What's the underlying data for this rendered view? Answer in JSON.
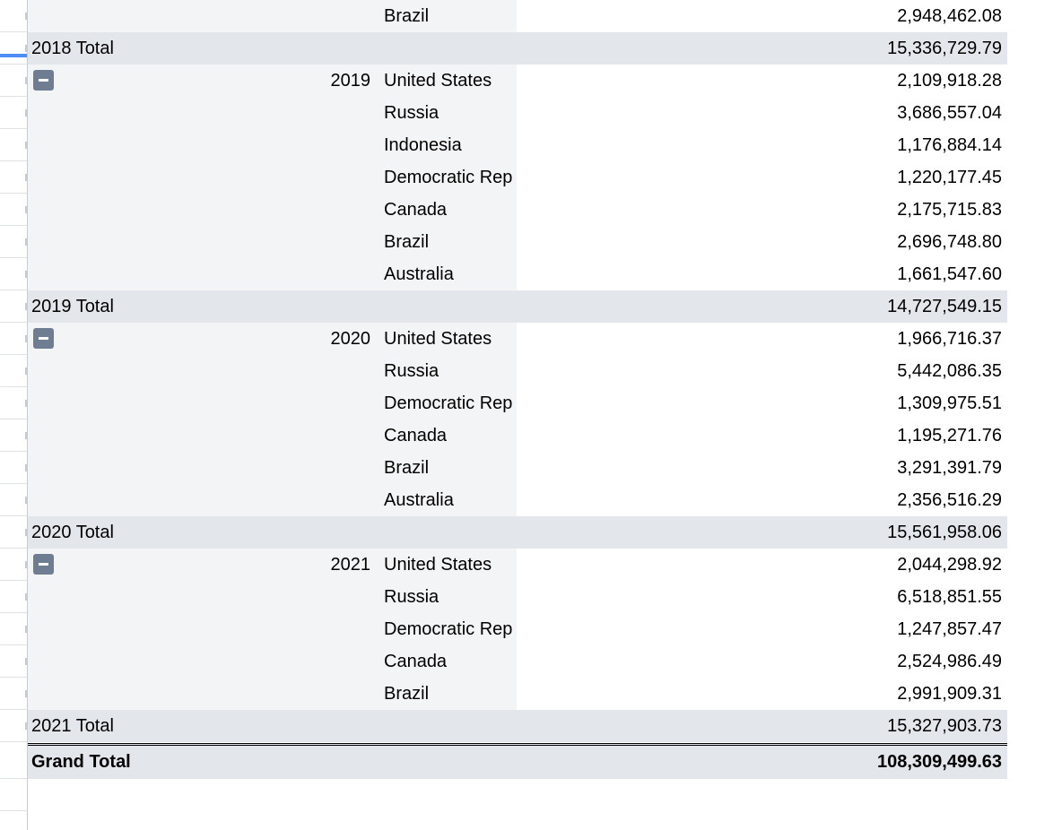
{
  "pivot": {
    "rows": [
      {
        "kind": "detail",
        "year": "",
        "country": "Brazil",
        "value": "2,948,462.08"
      },
      {
        "kind": "total",
        "label": "2018 Total",
        "value": "15,336,729.79"
      },
      {
        "kind": "detail",
        "collapse": true,
        "year": "2019",
        "country": "United States",
        "value": "2,109,918.28"
      },
      {
        "kind": "detail",
        "year": "",
        "country": "Russia",
        "value": "3,686,557.04"
      },
      {
        "kind": "detail",
        "year": "",
        "country": "Indonesia",
        "value": "1,176,884.14"
      },
      {
        "kind": "detail",
        "year": "",
        "country": "Democratic Rep",
        "value": "1,220,177.45"
      },
      {
        "kind": "detail",
        "year": "",
        "country": "Canada",
        "value": "2,175,715.83"
      },
      {
        "kind": "detail",
        "year": "",
        "country": "Brazil",
        "value": "2,696,748.80"
      },
      {
        "kind": "detail",
        "year": "",
        "country": "Australia",
        "value": "1,661,547.60"
      },
      {
        "kind": "total",
        "label": "2019 Total",
        "value": "14,727,549.15"
      },
      {
        "kind": "detail",
        "collapse": true,
        "year": "2020",
        "country": "United States",
        "value": "1,966,716.37"
      },
      {
        "kind": "detail",
        "year": "",
        "country": "Russia",
        "value": "5,442,086.35"
      },
      {
        "kind": "detail",
        "year": "",
        "country": "Democratic Rep",
        "value": "1,309,975.51"
      },
      {
        "kind": "detail",
        "year": "",
        "country": "Canada",
        "value": "1,195,271.76"
      },
      {
        "kind": "detail",
        "year": "",
        "country": "Brazil",
        "value": "3,291,391.79"
      },
      {
        "kind": "detail",
        "year": "",
        "country": "Australia",
        "value": "2,356,516.29"
      },
      {
        "kind": "total",
        "label": "2020 Total",
        "value": "15,561,958.06"
      },
      {
        "kind": "detail",
        "collapse": true,
        "year": "2021",
        "country": "United States",
        "value": "2,044,298.92"
      },
      {
        "kind": "detail",
        "year": "",
        "country": "Russia",
        "value": "6,518,851.55"
      },
      {
        "kind": "detail",
        "year": "",
        "country": "Democratic Rep",
        "value": "1,247,857.47"
      },
      {
        "kind": "detail",
        "year": "",
        "country": "Canada",
        "value": "2,524,986.49"
      },
      {
        "kind": "detail",
        "year": "",
        "country": "Brazil",
        "value": "2,991,909.31"
      },
      {
        "kind": "total",
        "label": "2021 Total",
        "value": "15,327,903.73"
      }
    ],
    "grand_total": {
      "label": "Grand Total",
      "value": "108,309,499.63"
    }
  },
  "icons": {
    "collapse": "minus-square-icon"
  },
  "colors": {
    "total_row_bg": "#e3e6eb",
    "label_col_bg": "#f3f4f6",
    "collapse_button": "#6e7d92",
    "selection_marker": "#4d8cf4"
  }
}
